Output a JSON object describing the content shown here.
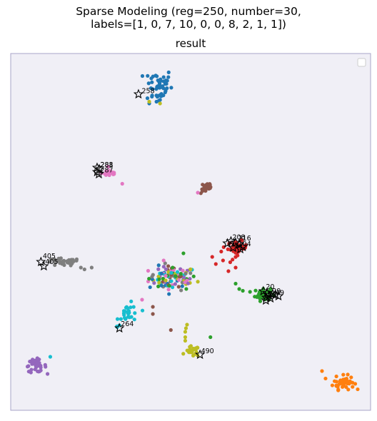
{
  "title_lines": [
    "Sparse Modeling (reg=250, number=30,",
    "labels=[1, 0, 7, 10, 0, 0, 8, 2, 1, 1])"
  ],
  "subtitle": "result",
  "chart_data": {
    "type": "scatter",
    "title": "Sparse Modeling (reg=250, number=30, labels=[1, 0, 7, 10, 0, 0, 8, 2, 1, 1])",
    "subtitle": "result",
    "xlabel": "",
    "ylabel": "",
    "xlim": [
      0,
      100
    ],
    "ylim": [
      0,
      100
    ],
    "ticks": "none",
    "grid": false,
    "legend": "top-right (empty box)",
    "background": "#f0eff6",
    "series": [
      {
        "color": "#1f77b4",
        "center": [
          41,
          91
        ],
        "spread": [
          3.2,
          4.2
        ],
        "n": 48,
        "extra": [
          [
            38.5,
            86
          ],
          [
            41.5,
            87
          ],
          [
            40.5,
            86.5
          ]
        ]
      },
      {
        "color": "#ff7f0e",
        "center": [
          92.5,
          7.8
        ],
        "spread": [
          2.4,
          1.6
        ],
        "n": 46,
        "extra": [
          [
            86.5,
            11
          ],
          [
            90.5,
            9.5
          ]
        ]
      },
      {
        "color": "#2ca02c",
        "center": [
          70,
          32.5
        ],
        "spread": [
          1.8,
          1.5
        ],
        "n": 40,
        "extra": [
          [
            62.5,
            35.5
          ],
          [
            63.5,
            34
          ],
          [
            64.5,
            33.5
          ],
          [
            66.5,
            33.2
          ],
          [
            45,
            40
          ],
          [
            55.5,
            20.5
          ],
          [
            48,
            44
          ]
        ]
      },
      {
        "color": "#d62728",
        "center": [
          63,
          45.5
        ],
        "spread": [
          2.2,
          1.6
        ],
        "n": 45,
        "extra": [
          [
            56,
            43
          ],
          [
            57,
            41
          ],
          [
            59,
            42
          ],
          [
            58.5,
            44.5
          ],
          [
            61,
            41.5
          ],
          [
            62.5,
            40
          ],
          [
            60.5,
            39
          ]
        ]
      },
      {
        "color": "#9467bd",
        "center": [
          7,
          12.5
        ],
        "spread": [
          2.4,
          1.5
        ],
        "n": 40,
        "extra": []
      },
      {
        "color": "#8c564b",
        "center": [
          54.5,
          62.5
        ],
        "spread": [
          1.4,
          1.5
        ],
        "n": 24,
        "extra": [
          [
            39.5,
            29
          ],
          [
            39.5,
            27
          ],
          [
            44.5,
            22.5
          ]
        ]
      },
      {
        "color": "#e377c2",
        "center": [
          27.5,
          66.5
        ],
        "spread": [
          1.8,
          0.9
        ],
        "n": 22,
        "extra": [
          [
            31,
            63.5
          ],
          [
            52,
            61
          ],
          [
            36.5,
            31
          ],
          [
            42.5,
            42
          ]
        ]
      },
      {
        "color": "#7f7f7f",
        "center": [
          14.5,
          41.5
        ],
        "spread": [
          4.0,
          0.9
        ],
        "n": 38,
        "extra": [
          [
            19.5,
            40
          ],
          [
            20.5,
            39.5
          ],
          [
            22.5,
            40
          ]
        ]
      },
      {
        "color": "#bcbd22",
        "center": [
          50.5,
          16.5
        ],
        "spread": [
          1.6,
          1.2
        ],
        "n": 20,
        "extra": [
          [
            48.5,
            22
          ],
          [
            48.5,
            20.5
          ],
          [
            48.5,
            19.5
          ],
          [
            48.7,
            23
          ],
          [
            49,
            24
          ],
          [
            38.5,
            86.5
          ],
          [
            41.5,
            86
          ]
        ]
      },
      {
        "color": "#17becf",
        "center": [
          33,
          27
        ],
        "spread": [
          2.5,
          2.4
        ],
        "n": 26,
        "extra": [
          [
            11,
            15
          ],
          [
            29.5,
            23.5
          ],
          [
            30.2,
            23.8
          ]
        ]
      }
    ],
    "mixed_cluster": {
      "center": [
        45,
        37
      ],
      "spread": [
        5.5,
        2.8
      ],
      "n": 110,
      "colors": [
        "#7f7f7f",
        "#8c564b",
        "#1f77b4",
        "#17becf",
        "#2ca02c",
        "#e377c2",
        "#9467bd",
        "#bcbd22"
      ]
    },
    "annotations": [
      {
        "label": "258",
        "x": 36,
        "y": 88.5
      },
      {
        "label": "281",
        "x": 24.5,
        "y": 67.8
      },
      {
        "label": "288",
        "x": 24.5,
        "y": 67.8
      },
      {
        "label": "287",
        "x": 24.5,
        "y": 66.3
      },
      {
        "label": "208",
        "x": 61.2,
        "y": 47.5
      },
      {
        "label": "216",
        "x": 62.8,
        "y": 47.2
      },
      {
        "label": "204",
        "x": 62.8,
        "y": 45.6
      },
      {
        "label": "405",
        "x": 8.5,
        "y": 42.2
      },
      {
        "label": "405",
        "x": 9.2,
        "y": 40.6
      },
      {
        "label": "20",
        "x": 70.5,
        "y": 33.6
      },
      {
        "label": "29",
        "x": 72.3,
        "y": 32.4
      },
      {
        "label": "49",
        "x": 73.2,
        "y": 31.9
      },
      {
        "label": "264",
        "x": 30.2,
        "y": 23.2
      },
      {
        "label": "490",
        "x": 52.5,
        "y": 15.6
      }
    ],
    "star_markers": [
      [
        35.5,
        88.6
      ],
      [
        24,
        68
      ],
      [
        24.6,
        67.6
      ],
      [
        24,
        66.8
      ],
      [
        24.5,
        66.2
      ],
      [
        60.2,
        46.8
      ],
      [
        61.2,
        47.4
      ],
      [
        62.5,
        47
      ],
      [
        63.5,
        46.5
      ],
      [
        64.5,
        45.8
      ],
      [
        63.8,
        45.2
      ],
      [
        61.8,
        45.6
      ],
      [
        8.4,
        41.6
      ],
      [
        9.2,
        40.4
      ],
      [
        70.2,
        33.4
      ],
      [
        71.2,
        32.9
      ],
      [
        71.8,
        32.2
      ],
      [
        72.8,
        32.6
      ],
      [
        73.6,
        32.4
      ],
      [
        74.4,
        32
      ],
      [
        71,
        31.6
      ],
      [
        72.2,
        31.4
      ],
      [
        70.9,
        30.8
      ],
      [
        30.2,
        23
      ],
      [
        52.6,
        15.6
      ]
    ]
  }
}
